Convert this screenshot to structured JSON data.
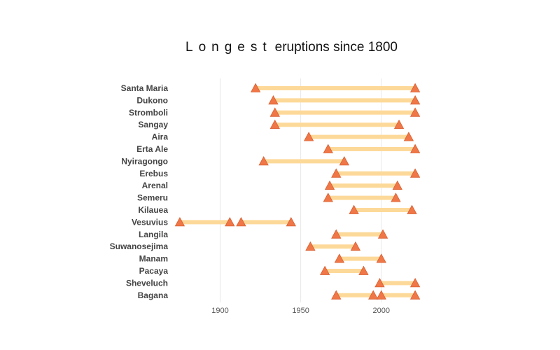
{
  "chart_data": {
    "type": "dumbbell",
    "title_spaced": "Longest",
    "title_rest": "eruptions since 1800",
    "categories": [
      "Santa Maria",
      "Dukono",
      "Stromboli",
      "Sangay",
      "Aira",
      "Erta Ale",
      "Nyiragongo",
      "Erebus",
      "Arenal",
      "Semeru",
      "Kilauea",
      "Vesuvius",
      "Langila",
      "Suwanosejima",
      "Manam",
      "Pacaya",
      "Sheveluch",
      "Bagana"
    ],
    "eruptions": [
      {
        "volcano": "Santa Maria",
        "start": 1922,
        "end": 2021
      },
      {
        "volcano": "Dukono",
        "start": 1933,
        "end": 2021
      },
      {
        "volcano": "Stromboli",
        "start": 1934,
        "end": 2021
      },
      {
        "volcano": "Sangay",
        "start": 1934,
        "end": 2011
      },
      {
        "volcano": "Aira",
        "start": 1955,
        "end": 2017
      },
      {
        "volcano": "Erta Ale",
        "start": 1967,
        "end": 2021
      },
      {
        "volcano": "Nyiragongo",
        "start": 1927,
        "end": 1977
      },
      {
        "volcano": "Erebus",
        "start": 1972,
        "end": 2021
      },
      {
        "volcano": "Arenal",
        "start": 1968,
        "end": 2010
      },
      {
        "volcano": "Semeru",
        "start": 1967,
        "end": 2009
      },
      {
        "volcano": "Kilauea",
        "start": 1983,
        "end": 2019
      },
      {
        "volcano": "Vesuvius",
        "start": 1875,
        "end": 1906
      },
      {
        "volcano": "Vesuvius",
        "start": 1913,
        "end": 1944
      },
      {
        "volcano": "Langila",
        "start": 1972,
        "end": 2001
      },
      {
        "volcano": "Suwanosejima",
        "start": 1956,
        "end": 1984
      },
      {
        "volcano": "Manam",
        "start": 1974,
        "end": 2000
      },
      {
        "volcano": "Pacaya",
        "start": 1965,
        "end": 1989
      },
      {
        "volcano": "Sheveluch",
        "start": 1999,
        "end": 2021
      },
      {
        "volcano": "Bagana",
        "start": 1972,
        "end": 1995
      },
      {
        "volcano": "Bagana",
        "start": 2000,
        "end": 2021
      }
    ],
    "xticks": [
      1900,
      1950,
      2000
    ],
    "xlim": [
      1872,
      2024
    ],
    "grid_vertical": true,
    "colors": {
      "bar": "#fdd999",
      "marker": "#f07747",
      "marker_stroke": "#d85f30",
      "grid": "#e8e8e8"
    }
  }
}
